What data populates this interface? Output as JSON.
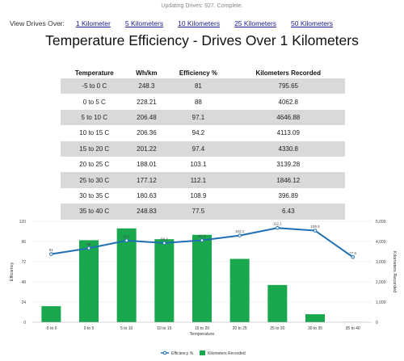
{
  "status": "Updating Drives: 927. Complete.",
  "view": {
    "label": "View Drives Over:",
    "links": [
      "1 Kilometer",
      "5 Kilometers",
      "10 Kilometers",
      "25 Kilometers",
      "50 Kilometers"
    ]
  },
  "title": "Temperature Efficiency - Drives Over 1 Kilometers",
  "table": {
    "headers": [
      "Temperature",
      "Wh/km",
      "Efficiency %",
      "Kilometers Recorded"
    ],
    "rows": [
      [
        "-5 to 0 C",
        "248.3",
        "81",
        "795.65"
      ],
      [
        "0 to 5 C",
        "228.21",
        "88",
        "4062.8"
      ],
      [
        "5 to 10 C",
        "206.48",
        "97.1",
        "4646.88"
      ],
      [
        "10 to 15 C",
        "206.36",
        "94.2",
        "4113.09"
      ],
      [
        "15 to 20 C",
        "201.22",
        "97.4",
        "4330.8"
      ],
      [
        "20 to 25 C",
        "188.01",
        "103.1",
        "3139.28"
      ],
      [
        "25 to 30 C",
        "177.12",
        "112.1",
        "1846.12"
      ],
      [
        "30 to 35 C",
        "180.63",
        "108.9",
        "396.89"
      ],
      [
        "35 to 40 C",
        "248.83",
        "77.5",
        "6.43"
      ]
    ]
  },
  "chart_data": {
    "type": "bar",
    "categories": [
      "-5 to 0",
      "0 to 5",
      "5 to 10",
      "10 to 15",
      "15 to 20",
      "20 to 25",
      "25 to 30",
      "30 to 35",
      "35 to 40"
    ],
    "series": [
      {
        "name": "Kilometers Recorded",
        "type": "bar",
        "axis": "right",
        "color": "#1aa84e",
        "values": [
          795.65,
          4062.8,
          4646.88,
          4113.09,
          4330.8,
          3139.28,
          1846.12,
          396.89,
          6.43
        ]
      },
      {
        "name": "Efficiency %",
        "type": "line",
        "axis": "left",
        "color": "#1f6fb2",
        "values": [
          81,
          88,
          97.1,
          94.2,
          97.4,
          103.1,
          112.1,
          108.9,
          77.5
        ]
      }
    ],
    "xlabel": "Temperature",
    "ylabel": "Efficiency",
    "y2label": "Kilometers Recorded",
    "ylim": [
      0,
      120
    ],
    "y2lim": [
      0,
      5000
    ],
    "yticks": [
      "0",
      "24",
      "48",
      "72",
      "96",
      "120"
    ],
    "y2ticks": [
      "0",
      "1,000",
      "2,000",
      "3,000",
      "4,000",
      "5,000"
    ],
    "legend": "bottom",
    "grid": true
  }
}
